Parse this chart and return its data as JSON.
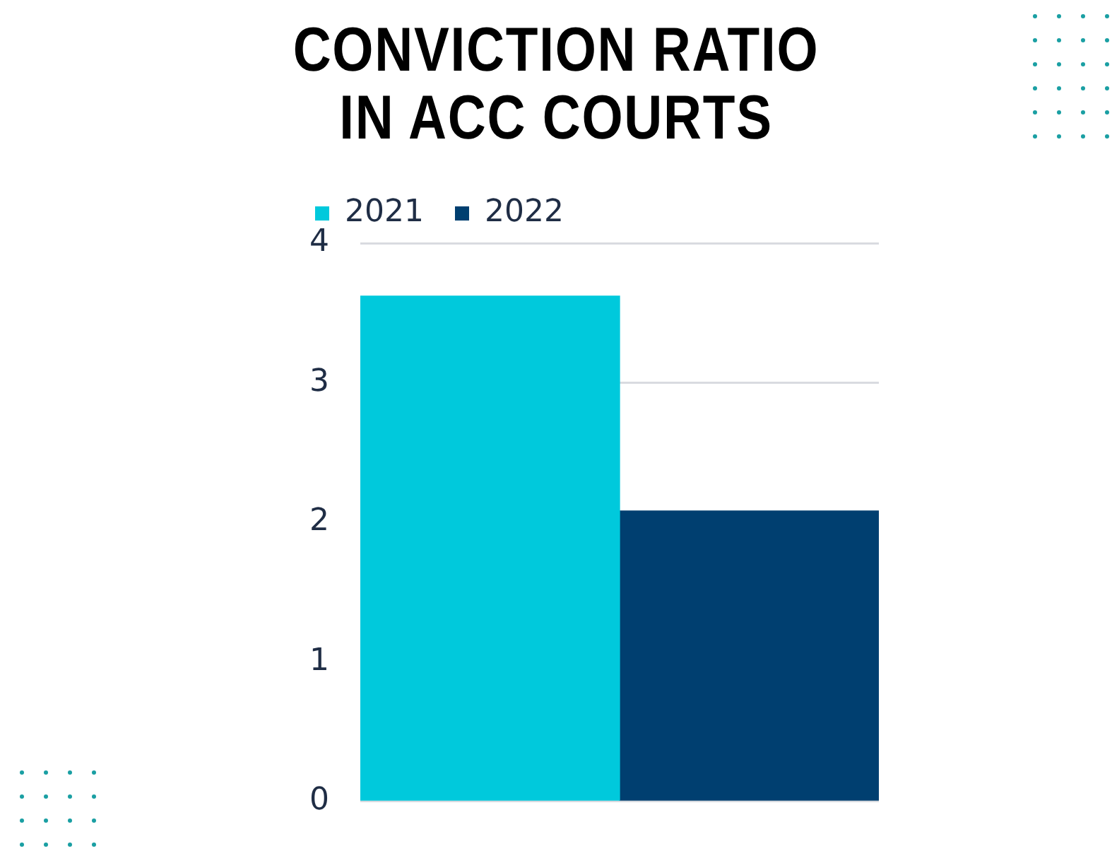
{
  "chart_data": {
    "type": "bar",
    "title": "CONVICTION RATIO IN ACC COURTS",
    "categories": [
      null
    ],
    "series": [
      {
        "name": "2021",
        "color": "#00c9dc",
        "values": [
          3.62
        ]
      },
      {
        "name": "2022",
        "color": "#003f70",
        "values": [
          2.08
        ]
      }
    ],
    "ylim": [
      0,
      4
    ],
    "yticks": [
      0,
      1,
      2,
      3,
      4
    ],
    "grid": "y",
    "legend": "top"
  }
}
